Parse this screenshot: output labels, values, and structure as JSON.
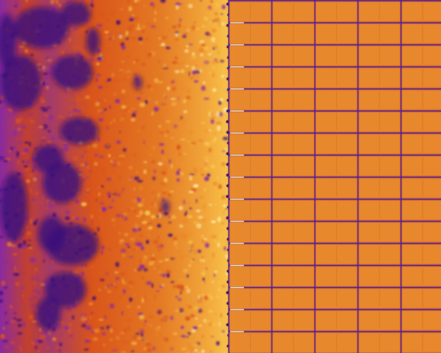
{
  "image": {
    "subject": "thermal-aerial-view-of-solar-panel-array-beside-ground",
    "palette": {
      "cold": "#3a0a7a",
      "cool": "#8a2aa0",
      "mid": "#d9541a",
      "warm": "#e9862a",
      "hot": "#f7c24a",
      "hottest": "#fff2b0",
      "panel": "#e8882c",
      "panel_edge": "#c0651e",
      "gridline": "#5a1a8a"
    },
    "panel_array": {
      "columns": 5,
      "rows": 16
    }
  }
}
